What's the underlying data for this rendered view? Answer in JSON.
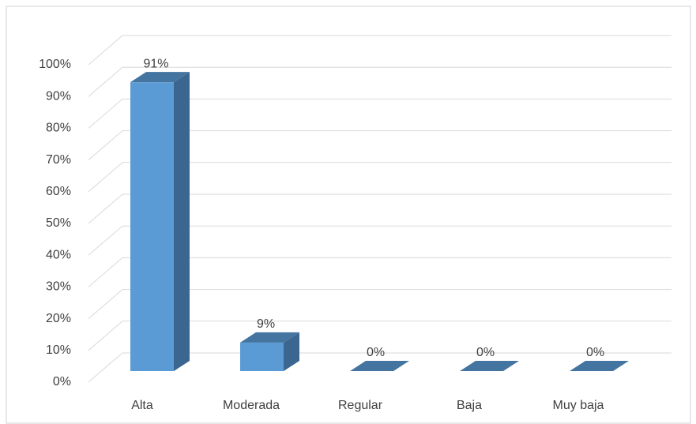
{
  "chart_data": {
    "type": "bar",
    "categories": [
      "Alta",
      "Moderada",
      "Regular",
      "Baja",
      "Muy baja"
    ],
    "values": [
      91,
      9,
      0,
      0,
      0
    ],
    "value_labels": [
      "91%",
      "9%",
      "0%",
      "0%",
      "0%"
    ],
    "color": "#5b9bd5",
    "ylim": [
      0,
      100
    ],
    "yticks": [
      {
        "value": 0,
        "label": "0%"
      },
      {
        "value": 10,
        "label": "10%"
      },
      {
        "value": 20,
        "label": "20%"
      },
      {
        "value": 30,
        "label": "30%"
      },
      {
        "value": 40,
        "label": "40%"
      },
      {
        "value": 50,
        "label": "50%"
      },
      {
        "value": 60,
        "label": "60%"
      },
      {
        "value": 70,
        "label": "70%"
      },
      {
        "value": 80,
        "label": "80%"
      },
      {
        "value": 90,
        "label": "90%"
      },
      {
        "value": 100,
        "label": "100%"
      }
    ],
    "grid": true
  }
}
